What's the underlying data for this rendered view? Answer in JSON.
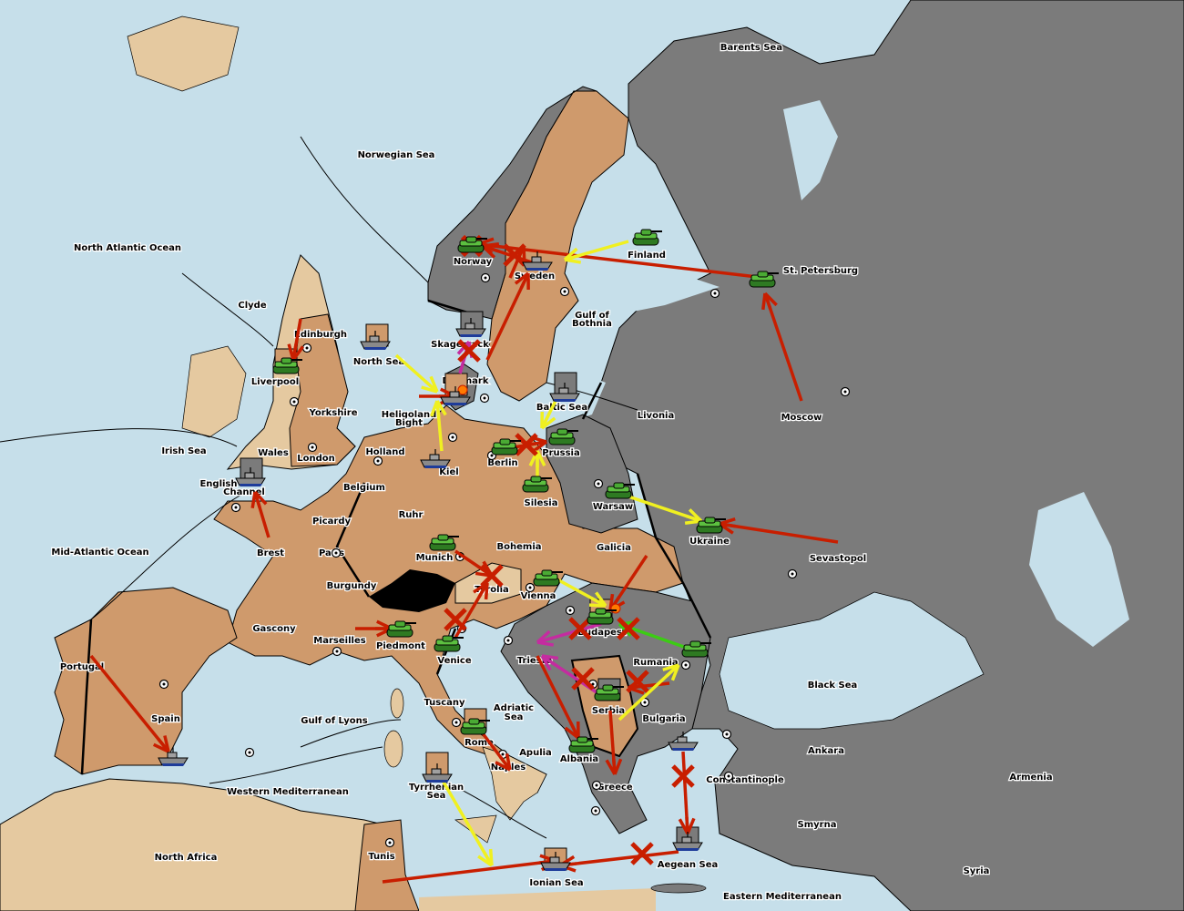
{
  "colors": {
    "sea": "#c6dfea",
    "neutral_land": "#e5c9a0",
    "player_brown": "#cf9a6c",
    "player_gray": "#7b7b7b",
    "switzerland": "#000000",
    "order_move": "#c81e00",
    "order_support": "#f0f020",
    "order_convoy": "#c42ca0",
    "order_retreat": "#3ccc14",
    "army": "#3a9a2a",
    "fleet": "#8a8a8a"
  },
  "labels": [
    "Barents Sea",
    "Norwegian Sea",
    "North Atlantic Ocean",
    "Norway",
    "Sweden",
    "Finland",
    "St. Petersburg",
    "Clyde",
    "Edinburgh",
    "Liverpool",
    "Yorkshire",
    "North Sea",
    "Skagerrack",
    "Denmark",
    "Gulf of",
    "Bothnia",
    "Baltic Sea",
    "Livonia",
    "Moscow",
    "Heligoland",
    "Bight",
    "Irish Sea",
    "Wales",
    "London",
    "Holland",
    "Berlin",
    "Prussia",
    "Kiel",
    "English",
    "Channel",
    "Belgium",
    "Warsaw",
    "Silesia",
    "Ruhr",
    "Picardy",
    "Ukraine",
    "Brest",
    "Paris",
    "Mid-Atlantic Ocean",
    "Bohemia",
    "Galicia",
    "Sevastopol",
    "Munich",
    "Burgundy",
    "Tyrolia",
    "Vienna",
    "Budapest",
    "Gascony",
    "Marseilles",
    "Piedmont",
    "Venice",
    "Trieste",
    "Rumania",
    "Portugal",
    "Black Sea",
    "Tuscany",
    "Adriatic",
    "Sea",
    "Serbia",
    "Bulgaria",
    "Spain",
    "Gulf of Lyons",
    "Rome",
    "Apulia",
    "Albania",
    "Ankara",
    "Naples",
    "Constantinople",
    "Armenia",
    "Greece",
    "Tyrrhenian",
    "Sea",
    "Western Mediterranean",
    "Smyrna",
    "North Africa",
    "Tunis",
    "Aegean Sea",
    "Syria",
    "Ionian Sea",
    "Eastern Mediterranean"
  ],
  "units": [
    {
      "type": "army",
      "province": "Norway",
      "dislodged": true
    },
    {
      "type": "army",
      "province": "Finland"
    },
    {
      "type": "army",
      "province": "St. Petersburg"
    },
    {
      "type": "army",
      "province": "Liverpool"
    },
    {
      "type": "fleet",
      "province": "Denmark"
    },
    {
      "type": "fleet",
      "province": "Kiel"
    },
    {
      "type": "army",
      "province": "Berlin"
    },
    {
      "type": "army",
      "province": "Prussia"
    },
    {
      "type": "army",
      "province": "Silesia"
    },
    {
      "type": "army",
      "province": "Warsaw"
    },
    {
      "type": "army",
      "province": "Ukraine"
    },
    {
      "type": "army",
      "province": "Munich"
    },
    {
      "type": "army",
      "province": "Vienna"
    },
    {
      "type": "army",
      "province": "Budapest"
    },
    {
      "type": "army",
      "province": "Rumania"
    },
    {
      "type": "army",
      "province": "Piedmont"
    },
    {
      "type": "army",
      "province": "Venice"
    },
    {
      "type": "army",
      "province": "Serbia"
    },
    {
      "type": "army",
      "province": "Rome"
    },
    {
      "type": "army",
      "province": "Albania"
    },
    {
      "type": "fleet",
      "province": "Sweden"
    },
    {
      "type": "fleet",
      "province": "North Sea"
    },
    {
      "type": "fleet",
      "province": "Skagerrack"
    },
    {
      "type": "fleet",
      "province": "Baltic Sea"
    },
    {
      "type": "fleet",
      "province": "English Channel"
    },
    {
      "type": "fleet",
      "province": "Spain"
    },
    {
      "type": "fleet",
      "province": "Tyrrhenian Sea"
    },
    {
      "type": "fleet",
      "province": "Ionian Sea"
    },
    {
      "type": "fleet",
      "province": "Aegean Sea"
    },
    {
      "type": "fleet",
      "province": "Constantinople"
    }
  ]
}
